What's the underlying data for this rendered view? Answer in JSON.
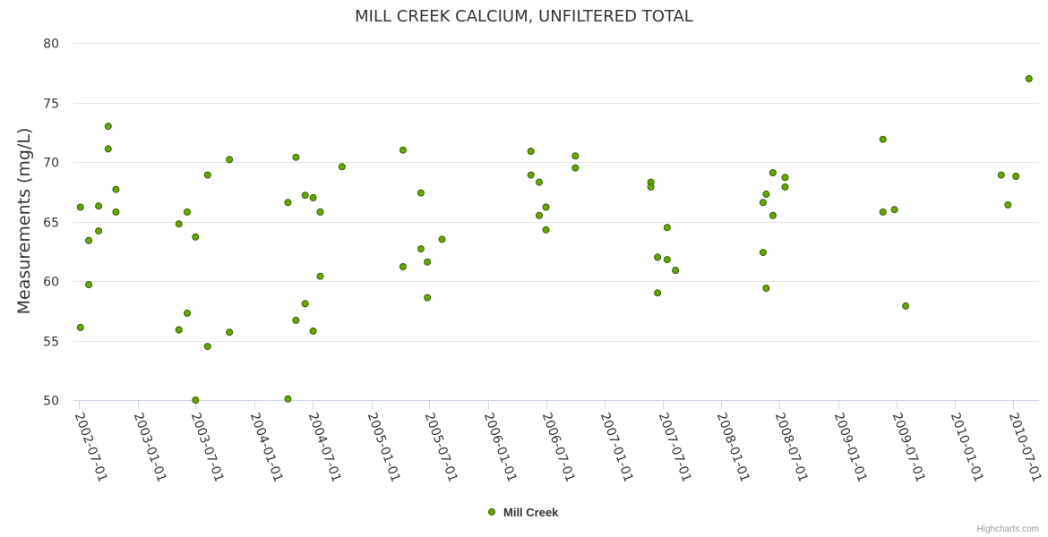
{
  "chart_data": {
    "type": "scatter",
    "title": "MILL CREEK CALCIUM, UNFILTERED TOTAL",
    "xlabel": "",
    "ylabel": "Measurements (mg/L)",
    "ylim": [
      50,
      80
    ],
    "yticks": [
      "50",
      "55",
      "60",
      "65",
      "70",
      "75",
      "80"
    ],
    "xticks": [
      "2002-07-01",
      "2003-01-01",
      "2003-07-01",
      "2004-01-01",
      "2004-07-01",
      "2005-01-01",
      "2005-07-01",
      "2006-01-01",
      "2006-07-01",
      "2007-01-01",
      "2007-07-01",
      "2008-01-01",
      "2008-07-01",
      "2009-01-01",
      "2009-07-01",
      "2010-01-01",
      "2010-07-01"
    ],
    "grid": true,
    "legend_position": "bottom-center",
    "series": [
      {
        "name": "Mill Creek",
        "color": "#66aa00",
        "edge_color": "#2f5e00",
        "points": [
          {
            "x": "2002-07-06",
            "y": 66.2
          },
          {
            "x": "2002-07-06",
            "y": 56.1
          },
          {
            "x": "2002-08-01",
            "y": 63.4
          },
          {
            "x": "2002-08-01",
            "y": 59.7
          },
          {
            "x": "2002-09-01",
            "y": 66.3
          },
          {
            "x": "2002-09-01",
            "y": 64.2
          },
          {
            "x": "2002-10-01",
            "y": 73.0
          },
          {
            "x": "2002-10-01",
            "y": 71.1
          },
          {
            "x": "2002-10-25",
            "y": 67.7
          },
          {
            "x": "2002-10-25",
            "y": 65.8
          },
          {
            "x": "2003-05-10",
            "y": 64.8
          },
          {
            "x": "2003-05-10",
            "y": 55.9
          },
          {
            "x": "2003-06-05",
            "y": 65.8
          },
          {
            "x": "2003-06-05",
            "y": 57.3
          },
          {
            "x": "2003-07-01",
            "y": 63.7
          },
          {
            "x": "2003-07-01",
            "y": 50.0
          },
          {
            "x": "2003-08-08",
            "y": 68.9
          },
          {
            "x": "2003-08-08",
            "y": 54.5
          },
          {
            "x": "2003-10-15",
            "y": 70.2
          },
          {
            "x": "2003-10-15",
            "y": 55.7
          },
          {
            "x": "2004-04-15",
            "y": 66.6
          },
          {
            "x": "2004-04-15",
            "y": 50.1
          },
          {
            "x": "2004-05-10",
            "y": 70.4
          },
          {
            "x": "2004-05-10",
            "y": 56.7
          },
          {
            "x": "2004-06-08",
            "y": 67.2
          },
          {
            "x": "2004-06-08",
            "y": 58.1
          },
          {
            "x": "2004-07-03",
            "y": 67.0
          },
          {
            "x": "2004-07-03",
            "y": 55.8
          },
          {
            "x": "2004-07-25",
            "y": 65.8
          },
          {
            "x": "2004-07-25",
            "y": 60.4
          },
          {
            "x": "2004-10-01",
            "y": 69.6
          },
          {
            "x": "2005-04-10",
            "y": 71.0
          },
          {
            "x": "2005-04-10",
            "y": 61.2
          },
          {
            "x": "2005-06-05",
            "y": 67.4
          },
          {
            "x": "2005-06-05",
            "y": 62.7
          },
          {
            "x": "2005-06-25",
            "y": 61.6
          },
          {
            "x": "2005-06-25",
            "y": 58.6
          },
          {
            "x": "2005-08-10",
            "y": 63.5
          },
          {
            "x": "2006-05-15",
            "y": 70.9
          },
          {
            "x": "2006-05-15",
            "y": 68.9
          },
          {
            "x": "2006-06-10",
            "y": 68.3
          },
          {
            "x": "2006-06-10",
            "y": 65.5
          },
          {
            "x": "2006-07-01",
            "y": 66.2
          },
          {
            "x": "2006-07-01",
            "y": 64.3
          },
          {
            "x": "2006-10-01",
            "y": 70.5
          },
          {
            "x": "2006-10-01",
            "y": 69.5
          },
          {
            "x": "2007-05-25",
            "y": 68.3
          },
          {
            "x": "2007-05-25",
            "y": 67.9
          },
          {
            "x": "2007-06-15",
            "y": 62.0
          },
          {
            "x": "2007-06-15",
            "y": 59.0
          },
          {
            "x": "2007-07-15",
            "y": 64.5
          },
          {
            "x": "2007-07-15",
            "y": 61.8
          },
          {
            "x": "2007-08-10",
            "y": 60.9
          },
          {
            "x": "2008-05-10",
            "y": 66.6
          },
          {
            "x": "2008-05-10",
            "y": 62.4
          },
          {
            "x": "2008-05-20",
            "y": 67.3
          },
          {
            "x": "2008-05-20",
            "y": 59.4
          },
          {
            "x": "2008-06-10",
            "y": 69.1
          },
          {
            "x": "2008-06-10",
            "y": 65.5
          },
          {
            "x": "2008-07-18",
            "y": 68.7
          },
          {
            "x": "2008-07-18",
            "y": 67.9
          },
          {
            "x": "2009-05-20",
            "y": 71.9
          },
          {
            "x": "2009-05-20",
            "y": 65.8
          },
          {
            "x": "2009-06-25",
            "y": 66.0
          },
          {
            "x": "2009-07-30",
            "y": 57.9
          },
          {
            "x": "2010-05-25",
            "y": 68.9
          },
          {
            "x": "2010-06-15",
            "y": 66.4
          },
          {
            "x": "2010-07-10",
            "y": 68.8
          },
          {
            "x": "2010-08-20",
            "y": 77.0
          }
        ]
      }
    ]
  },
  "credits": "Highcharts.com"
}
